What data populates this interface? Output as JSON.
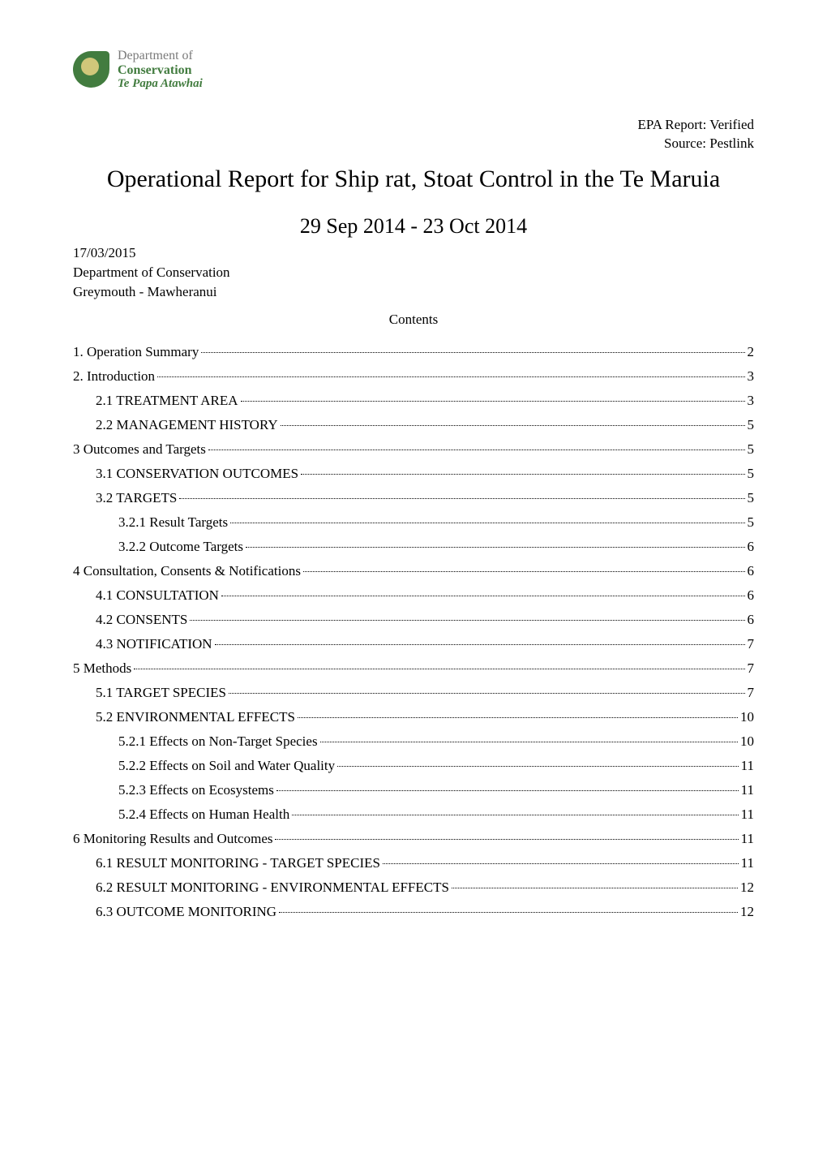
{
  "logo": {
    "line1": "Department of",
    "line2": "Conservation",
    "line3": "Te Papa Atawhai"
  },
  "header_right": {
    "line1": "EPA Report: Verified",
    "line2": "Source: Pestlink"
  },
  "main_title": "Operational Report for Ship rat, Stoat Control in the Te Maruia",
  "date_range": "29 Sep 2014 - 23 Oct 2014",
  "meta": {
    "date": "17/03/2015",
    "org": "Department of Conservation",
    "location": "Greymouth - Mawheranui"
  },
  "contents_heading": "Contents",
  "toc": [
    {
      "text": "1. Operation Summary",
      "page": "2",
      "indent": 0
    },
    {
      "text": "2. Introduction",
      "page": "3",
      "indent": 0
    },
    {
      "text": "2.1 TREATMENT AREA",
      "page": "3",
      "indent": 1
    },
    {
      "text": "2.2 MANAGEMENT HISTORY",
      "page": "5",
      "indent": 1
    },
    {
      "text": "3 Outcomes and Targets",
      "page": "5",
      "indent": 0
    },
    {
      "text": "3.1 CONSERVATION OUTCOMES",
      "page": "5",
      "indent": 1
    },
    {
      "text": "3.2 TARGETS",
      "page": "5",
      "indent": 1
    },
    {
      "text": "3.2.1 Result Targets",
      "page": "5",
      "indent": 2
    },
    {
      "text": "3.2.2 Outcome Targets",
      "page": "6",
      "indent": 2
    },
    {
      "text": "4 Consultation, Consents & Notifications",
      "page": "6",
      "indent": 0
    },
    {
      "text": "4.1 CONSULTATION",
      "page": "6",
      "indent": 1
    },
    {
      "text": "4.2 CONSENTS",
      "page": "6",
      "indent": 1
    },
    {
      "text": "4.3 NOTIFICATION",
      "page": "7",
      "indent": 1
    },
    {
      "text": "5 Methods",
      "page": "7",
      "indent": 0
    },
    {
      "text": "5.1 TARGET SPECIES",
      "page": "7",
      "indent": 1
    },
    {
      "text": "5.2 ENVIRONMENTAL EFFECTS",
      "page": "10",
      "indent": 1
    },
    {
      "text": "5.2.1 Effects on Non-Target Species",
      "page": "10",
      "indent": 2
    },
    {
      "text": "5.2.2 Effects on Soil and Water Quality",
      "page": "11",
      "indent": 2
    },
    {
      "text": "5.2.3 Effects on Ecosystems",
      "page": "11",
      "indent": 2
    },
    {
      "text": "5.2.4 Effects on Human Health",
      "page": "11",
      "indent": 2
    },
    {
      "text": "6 Monitoring Results and Outcomes",
      "page": "11",
      "indent": 0
    },
    {
      "text": "6.1 RESULT MONITORING - TARGET SPECIES",
      "page": "11",
      "indent": 1
    },
    {
      "text": "6.2 RESULT MONITORING - ENVIRONMENTAL EFFECTS",
      "page": "12",
      "indent": 1
    },
    {
      "text": "6.3 OUTCOME MONITORING",
      "page": "12",
      "indent": 1
    }
  ]
}
